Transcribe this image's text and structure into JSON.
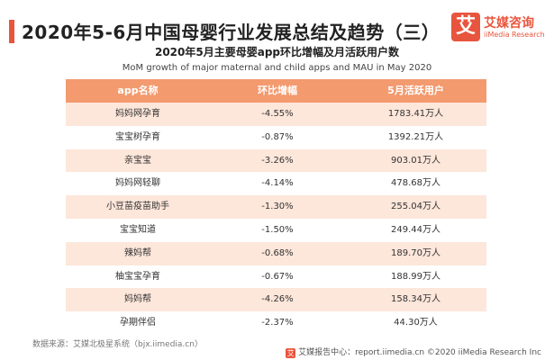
{
  "header": {
    "title": "2020年5-6月中国母婴行业发展总结及趋势（三）",
    "logo_badge": "艾",
    "logo_name": "艾媒咨询",
    "logo_sub": "iiMedia Research"
  },
  "subtitle_cn": "2020年5月主要母婴app环比增幅及月活跃用户数",
  "subtitle_en": "MoM growth of major maternal and child apps and MAU in May 2020",
  "table": {
    "headers": [
      "app名称",
      "环比增幅",
      "5月活跃用户"
    ],
    "rows": [
      [
        "妈妈网孕育",
        "-4.55%",
        "1783.41万人"
      ],
      [
        "宝宝树孕育",
        "-0.87%",
        "1392.21万人"
      ],
      [
        "亲宝宝",
        "-3.26%",
        "903.01万人"
      ],
      [
        "妈妈网轻聊",
        "-4.14%",
        "478.68万人"
      ],
      [
        "小豆苗疫苗助手",
        "-1.30%",
        "255.04万人"
      ],
      [
        "宝宝知道",
        "-1.50%",
        "249.44万人"
      ],
      [
        "辣妈帮",
        "-0.68%",
        "189.70万人"
      ],
      [
        "柚宝宝孕育",
        "-0.67%",
        "188.99万人"
      ],
      [
        "妈妈帮",
        "-4.26%",
        "158.34万人"
      ],
      [
        "孕期伴侣",
        "-2.37%",
        "44.30万人"
      ]
    ]
  },
  "source": "数据来源：艾媒北极星系统（bjx.iimedia.cn）",
  "footer": {
    "icon": "艾",
    "text": "艾媒报告中心：report.iimedia.cn  ©2020  iiMedia Research Inc"
  },
  "colors": {
    "accent": "#e8553e",
    "header_row": "#f39a6f",
    "striped_row": "#fde6da"
  }
}
